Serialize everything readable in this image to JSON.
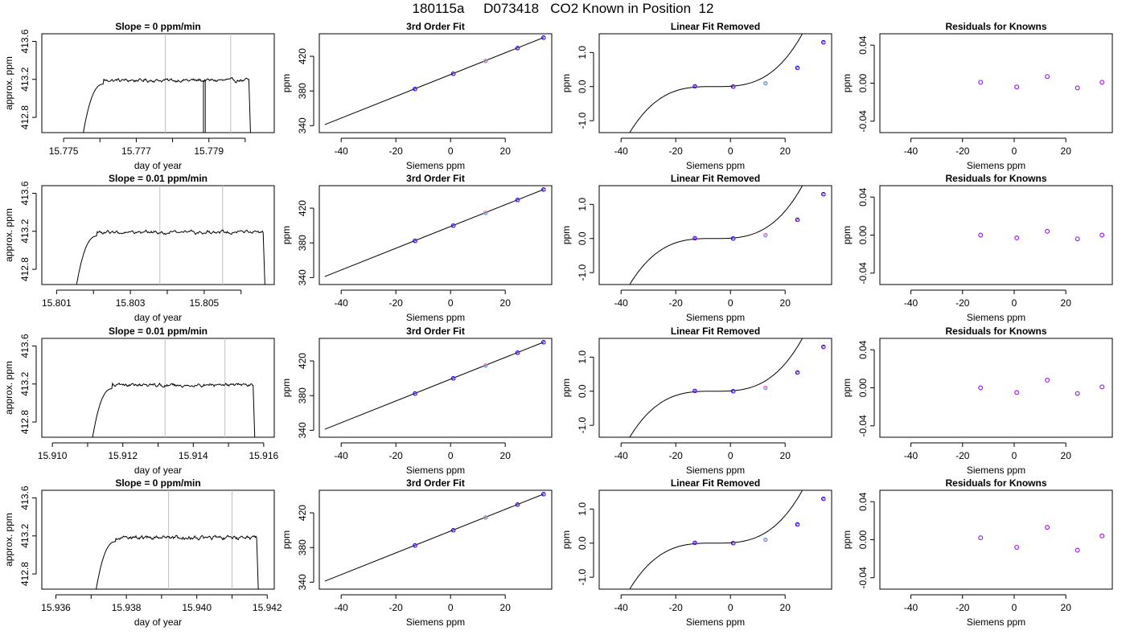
{
  "page_title": "180115a     D073418   CO2 Known in Position  12",
  "colors": {
    "axis": "#000000",
    "trace": "#000000",
    "marker_line": "#bebebe",
    "known_point": "#0000ff",
    "known_point_alt": "#a020f0",
    "highlight_point": "#ff69b4",
    "highlight_point_alt": "#00bfff"
  },
  "chart_data": [
    {
      "row": 1,
      "col": 1,
      "type": "line",
      "title": "Slope =  0  ppm/min",
      "xlabel": "day of year",
      "ylabel": "approx. ppm",
      "xlim": [
        15.7744,
        15.7808
      ],
      "ylim": [
        412.64,
        413.68
      ],
      "xticks": [
        15.775,
        15.776,
        15.777,
        15.778,
        15.779,
        15.78
      ],
      "xtick_labels": [
        "15.775",
        "",
        "15.777",
        "",
        "15.779",
        ""
      ],
      "yticks": [
        412.8,
        413.2,
        413.6
      ],
      "ytick_labels": [
        "412.8",
        "413.2",
        "413.6"
      ],
      "verticals": [
        15.7778,
        15.7796
      ],
      "dropouts": [
        15.77885,
        15.7789
      ],
      "trace": {
        "start": 15.7755,
        "rise_end": 15.7761,
        "end": 15.7801,
        "level": 413.19,
        "noise": 0.012
      }
    },
    {
      "row": 1,
      "col": 2,
      "type": "line",
      "title": "3rd Order Fit",
      "xlabel": "Siemens ppm",
      "ylabel": "ppm",
      "xlim": [
        -48,
        37
      ],
      "ylim": [
        332,
        446
      ],
      "xticks": [
        -40,
        -20,
        0,
        20
      ],
      "xtick_labels": [
        "-40",
        "-20",
        "0",
        "20"
      ],
      "yticks": [
        340,
        380,
        420
      ],
      "ytick_labels": [
        "340",
        "380",
        "420"
      ],
      "line": [
        [
          -46,
          341.2
        ],
        [
          34,
          441.6
        ]
      ],
      "points": [
        [
          -13,
          382.4
        ],
        [
          1,
          399.9
        ],
        [
          12.8,
          414.7
        ],
        [
          24.5,
          429.5
        ],
        [
          34,
          441.6
        ]
      ],
      "highlight_index": 2
    },
    {
      "row": 1,
      "col": 3,
      "type": "line",
      "title": "Linear Fit Removed",
      "xlabel": "Siemens ppm",
      "ylabel": "ppm",
      "xlim": [
        -48,
        37
      ],
      "ylim": [
        -1.35,
        1.55
      ],
      "xticks": [
        -40,
        -20,
        0,
        20
      ],
      "xtick_labels": [
        "-40",
        "-20",
        "0",
        "20"
      ],
      "yticks": [
        -1.0,
        0.0,
        1.0
      ],
      "ytick_labels": [
        "-1.0",
        "0.0",
        "1.0"
      ],
      "curve": {
        "a": 4.6e-05,
        "c": -0.0001,
        "x0": -6,
        "from": -45.5,
        "to": 34.5
      },
      "points": [
        [
          -13,
          0.01
        ],
        [
          1,
          0.0
        ],
        [
          12.8,
          0.1
        ],
        [
          24.5,
          0.55
        ],
        [
          34,
          1.3
        ]
      ],
      "highlight_index": 2
    },
    {
      "row": 1,
      "col": 4,
      "type": "scatter",
      "title": "Residuals for Knowns",
      "xlabel": "Siemens ppm",
      "ylabel": "ppm",
      "xlim": [
        -52,
        38
      ],
      "ylim": [
        -0.052,
        0.052
      ],
      "xticks": [
        -40,
        -20,
        0,
        20
      ],
      "xtick_labels": [
        "-40",
        "-20",
        "0",
        "20"
      ],
      "yticks": [
        -0.04,
        0.0,
        0.04
      ],
      "ytick_labels": [
        "-0.04",
        "0.00",
        "0.04"
      ],
      "points": [
        [
          -13,
          0.001
        ],
        [
          1,
          -0.004
        ],
        [
          12.8,
          0.007
        ],
        [
          24.5,
          -0.005
        ],
        [
          34,
          0.001
        ]
      ]
    },
    {
      "row": 2,
      "col": 1,
      "type": "line",
      "title": "Slope =  0.01  ppm/min",
      "xlabel": "day of year",
      "ylabel": "approx. ppm",
      "xlim": [
        15.8006,
        15.8069
      ],
      "ylim": [
        412.64,
        413.68
      ],
      "xticks": [
        15.801,
        15.802,
        15.803,
        15.804,
        15.805,
        15.806
      ],
      "xtick_labels": [
        "15.801",
        "",
        "15.803",
        "",
        "15.805",
        ""
      ],
      "yticks": [
        412.8,
        413.2,
        413.6
      ],
      "ytick_labels": [
        "412.8",
        "413.2",
        "413.6"
      ],
      "verticals": [
        15.8038,
        15.8055
      ],
      "dropouts": [],
      "trace": {
        "start": 15.8015,
        "rise_end": 15.8021,
        "end": 15.8066,
        "level": 413.19,
        "noise": 0.012
      }
    },
    {
      "row": 2,
      "col": 2,
      "type": "line",
      "title": "3rd Order Fit",
      "xlabel": "Siemens ppm",
      "ylabel": "ppm",
      "xlim": [
        -48,
        37
      ],
      "ylim": [
        332,
        446
      ],
      "xticks": [
        -40,
        -20,
        0,
        20
      ],
      "xtick_labels": [
        "-40",
        "-20",
        "0",
        "20"
      ],
      "yticks": [
        340,
        380,
        420
      ],
      "ytick_labels": [
        "340",
        "380",
        "420"
      ],
      "line": [
        [
          -46,
          341.2
        ],
        [
          34,
          441.6
        ]
      ],
      "points": [
        [
          -13,
          382.4
        ],
        [
          1,
          399.9
        ],
        [
          12.8,
          414.7
        ],
        [
          24.5,
          429.5
        ],
        [
          34,
          441.6
        ]
      ],
      "highlight_index": 2
    },
    {
      "row": 2,
      "col": 3,
      "type": "line",
      "title": "Linear Fit Removed",
      "xlabel": "Siemens ppm",
      "ylabel": "ppm",
      "xlim": [
        -48,
        37
      ],
      "ylim": [
        -1.35,
        1.55
      ],
      "xticks": [
        -40,
        -20,
        0,
        20
      ],
      "xtick_labels": [
        "-40",
        "-20",
        "0",
        "20"
      ],
      "yticks": [
        -1.0,
        0.0,
        1.0
      ],
      "ytick_labels": [
        "-1.0",
        "0.0",
        "1.0"
      ],
      "curve": {
        "a": 4.6e-05,
        "c": -0.0001,
        "x0": -6,
        "from": -45.5,
        "to": 34.5
      },
      "points": [
        [
          -13,
          0.01
        ],
        [
          1,
          0.0
        ],
        [
          12.8,
          0.1
        ],
        [
          24.5,
          0.55
        ],
        [
          34,
          1.3
        ]
      ],
      "highlight_index": 2
    },
    {
      "row": 2,
      "col": 4,
      "type": "scatter",
      "title": "Residuals for Knowns",
      "xlabel": "Siemens ppm",
      "ylabel": "ppm",
      "xlim": [
        -52,
        38
      ],
      "ylim": [
        -0.052,
        0.052
      ],
      "xticks": [
        -40,
        -20,
        0,
        20
      ],
      "xtick_labels": [
        "-40",
        "-20",
        "0",
        "20"
      ],
      "yticks": [
        -0.04,
        0.0,
        0.04
      ],
      "ytick_labels": [
        "-0.04",
        "0.00",
        "0.04"
      ],
      "points": [
        [
          -13,
          0.0
        ],
        [
          1,
          -0.003
        ],
        [
          12.8,
          0.004
        ],
        [
          24.5,
          -0.004
        ],
        [
          34,
          0.0
        ]
      ]
    },
    {
      "row": 3,
      "col": 1,
      "type": "line",
      "title": "Slope =  0.01  ppm/min",
      "xlabel": "day of year",
      "ylabel": "approx. ppm",
      "xlim": [
        15.9097,
        15.9163
      ],
      "ylim": [
        412.64,
        413.68
      ],
      "xticks": [
        15.91,
        15.911,
        15.912,
        15.913,
        15.914,
        15.915,
        15.916
      ],
      "xtick_labels": [
        "15.910",
        "",
        "15.912",
        "",
        "15.914",
        "",
        "15.916"
      ],
      "yticks": [
        412.8,
        413.2,
        413.6
      ],
      "ytick_labels": [
        "412.8",
        "413.2",
        "413.6"
      ],
      "verticals": [
        15.9132,
        15.9149
      ],
      "dropouts": [],
      "trace": {
        "start": 15.9111,
        "rise_end": 15.9117,
        "end": 15.9157,
        "level": 413.19,
        "noise": 0.012
      }
    },
    {
      "row": 3,
      "col": 2,
      "type": "line",
      "title": "3rd Order Fit",
      "xlabel": "Siemens ppm",
      "ylabel": "ppm",
      "xlim": [
        -48,
        37
      ],
      "ylim": [
        332,
        446
      ],
      "xticks": [
        -40,
        -20,
        0,
        20
      ],
      "xtick_labels": [
        "-40",
        "-20",
        "0",
        "20"
      ],
      "yticks": [
        340,
        380,
        420
      ],
      "ytick_labels": [
        "340",
        "380",
        "420"
      ],
      "line": [
        [
          -46,
          341.2
        ],
        [
          34,
          441.6
        ]
      ],
      "points": [
        [
          -13,
          382.4
        ],
        [
          1,
          399.9
        ],
        [
          12.8,
          414.7
        ],
        [
          24.5,
          429.5
        ],
        [
          34,
          441.6
        ]
      ],
      "highlight_index": 2
    },
    {
      "row": 3,
      "col": 3,
      "type": "line",
      "title": "Linear Fit Removed",
      "xlabel": "Siemens ppm",
      "ylabel": "ppm",
      "xlim": [
        -48,
        37
      ],
      "ylim": [
        -1.35,
        1.55
      ],
      "xticks": [
        -40,
        -20,
        0,
        20
      ],
      "xtick_labels": [
        "-40",
        "-20",
        "0",
        "20"
      ],
      "yticks": [
        -1.0,
        0.0,
        1.0
      ],
      "ytick_labels": [
        "-1.0",
        "0.0",
        "1.0"
      ],
      "curve": {
        "a": 4.6e-05,
        "c": -0.0001,
        "x0": -6,
        "from": -45.5,
        "to": 34.5
      },
      "points": [
        [
          -13,
          0.01
        ],
        [
          1,
          0.0
        ],
        [
          12.8,
          0.1
        ],
        [
          24.5,
          0.55
        ],
        [
          34,
          1.3
        ]
      ],
      "highlight_index": 2
    },
    {
      "row": 3,
      "col": 4,
      "type": "scatter",
      "title": "Residuals for Knowns",
      "xlabel": "Siemens ppm",
      "ylabel": "ppm",
      "xlim": [
        -52,
        38
      ],
      "ylim": [
        -0.052,
        0.052
      ],
      "xticks": [
        -40,
        -20,
        0,
        20
      ],
      "xtick_labels": [
        "-40",
        "-20",
        "0",
        "20"
      ],
      "yticks": [
        -0.04,
        0.0,
        0.04
      ],
      "ytick_labels": [
        "-0.04",
        "0.00",
        "0.04"
      ],
      "points": [
        [
          -13,
          0.0
        ],
        [
          1,
          -0.005
        ],
        [
          12.8,
          0.008
        ],
        [
          24.5,
          -0.006
        ],
        [
          34,
          0.001
        ]
      ]
    },
    {
      "row": 4,
      "col": 1,
      "type": "line",
      "title": "Slope =  0  ppm/min",
      "xlabel": "day of year",
      "ylabel": "approx. ppm",
      "xlim": [
        15.9356,
        15.9422
      ],
      "ylim": [
        412.64,
        413.68
      ],
      "xticks": [
        15.936,
        15.937,
        15.938,
        15.939,
        15.94,
        15.941,
        15.942
      ],
      "xtick_labels": [
        "15.936",
        "",
        "15.938",
        "",
        "15.940",
        "",
        "15.942"
      ],
      "yticks": [
        412.8,
        413.2,
        413.6
      ],
      "ytick_labels": [
        "412.8",
        "413.2",
        "413.6"
      ],
      "verticals": [
        15.9392,
        15.941
      ],
      "dropouts": [],
      "trace": {
        "start": 15.9371,
        "rise_end": 15.9377,
        "end": 15.9417,
        "level": 413.18,
        "noise": 0.014
      }
    },
    {
      "row": 4,
      "col": 2,
      "type": "line",
      "title": "3rd Order Fit",
      "xlabel": "Siemens ppm",
      "ylabel": "ppm",
      "xlim": [
        -48,
        37
      ],
      "ylim": [
        332,
        446
      ],
      "xticks": [
        -40,
        -20,
        0,
        20
      ],
      "xtick_labels": [
        "-40",
        "-20",
        "0",
        "20"
      ],
      "yticks": [
        340,
        380,
        420
      ],
      "ytick_labels": [
        "340",
        "380",
        "420"
      ],
      "line": [
        [
          -46,
          341.2
        ],
        [
          34,
          441.6
        ]
      ],
      "points": [
        [
          -13,
          382.4
        ],
        [
          1,
          399.9
        ],
        [
          12.8,
          414.7
        ],
        [
          24.5,
          429.5
        ],
        [
          34,
          441.6
        ]
      ],
      "highlight_index": 2
    },
    {
      "row": 4,
      "col": 3,
      "type": "line",
      "title": "Linear Fit Removed",
      "xlabel": "Siemens ppm",
      "ylabel": "ppm",
      "xlim": [
        -48,
        37
      ],
      "ylim": [
        -1.35,
        1.55
      ],
      "xticks": [
        -40,
        -20,
        0,
        20
      ],
      "xtick_labels": [
        "-40",
        "-20",
        "0",
        "20"
      ],
      "yticks": [
        -1.0,
        0.0,
        1.0
      ],
      "ytick_labels": [
        "-1.0",
        "0.0",
        "1.0"
      ],
      "curve": {
        "a": 4.6e-05,
        "c": -0.0001,
        "x0": -6,
        "from": -45.5,
        "to": 34.5
      },
      "points": [
        [
          -13,
          0.01
        ],
        [
          1,
          0.0
        ],
        [
          12.8,
          0.1
        ],
        [
          24.5,
          0.55
        ],
        [
          34,
          1.3
        ]
      ],
      "highlight_index": 2
    },
    {
      "row": 4,
      "col": 4,
      "type": "scatter",
      "title": "Residuals for Knowns",
      "xlabel": "Siemens ppm",
      "ylabel": "ppm",
      "xlim": [
        -52,
        38
      ],
      "ylim": [
        -0.052,
        0.052
      ],
      "xticks": [
        -40,
        -20,
        0,
        20
      ],
      "xtick_labels": [
        "-40",
        "-20",
        "0",
        "20"
      ],
      "yticks": [
        -0.04,
        0.0,
        0.04
      ],
      "ytick_labels": [
        "-0.04",
        "0.00",
        "0.04"
      ],
      "points": [
        [
          -13,
          0.002
        ],
        [
          1,
          -0.008
        ],
        [
          12.8,
          0.013
        ],
        [
          24.5,
          -0.011
        ],
        [
          34,
          0.004
        ]
      ]
    }
  ]
}
